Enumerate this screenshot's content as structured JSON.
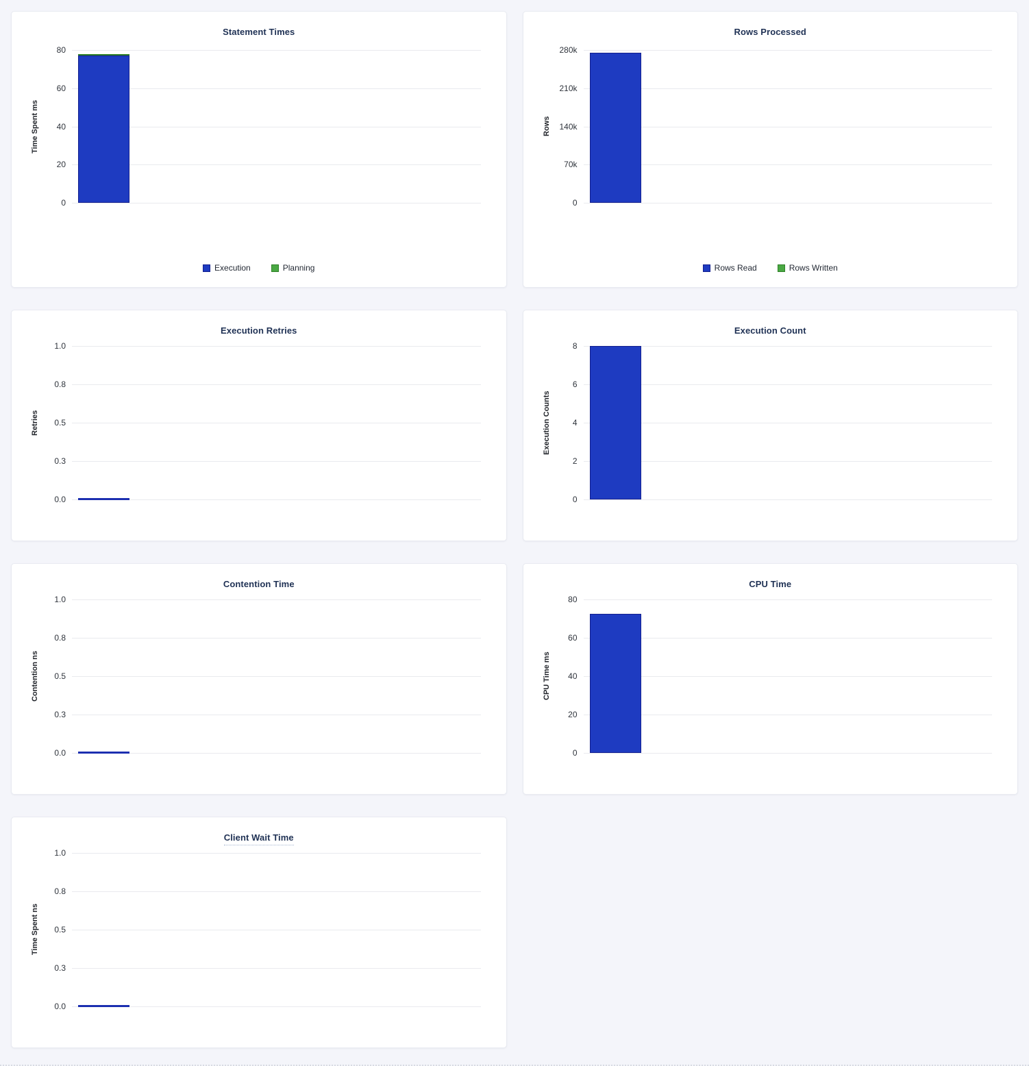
{
  "page": {
    "background": "#f4f5fa"
  },
  "colors": {
    "card_bg": "#ffffff",
    "card_border": "#e8eaf1",
    "title_text": "#1f3154",
    "tick_text": "#2e333b",
    "axis_label_text": "#23262c",
    "legend_text": "#242a35",
    "gridline": "#e9eaee",
    "blue_fill": "#1e3bc1",
    "blue_stroke": "#131f8e",
    "green_fill": "#4aa843",
    "green_stroke": "#2e8127",
    "zero_line": "#1c2fb0"
  },
  "chart_data": [
    {
      "id": "statement-times",
      "type": "bar",
      "title": "Statement Times",
      "title_tooltip": false,
      "ylabel": "Time Spent ms",
      "yticks": [
        "80",
        "60",
        "40",
        "20",
        "0"
      ],
      "ylim": [
        0,
        80
      ],
      "stacked": true,
      "grid": true,
      "legend_position": "bottom",
      "series": [
        {
          "name": "Execution",
          "value": 77,
          "color": "blue"
        },
        {
          "name": "Planning",
          "value": 1,
          "color": "green"
        }
      ],
      "legend": [
        {
          "label": "Execution",
          "color": "blue"
        },
        {
          "label": "Planning",
          "color": "green"
        }
      ],
      "layout": "tall"
    },
    {
      "id": "rows-processed",
      "type": "bar",
      "title": "Rows Processed",
      "title_tooltip": false,
      "ylabel": "Rows",
      "yticks": [
        "280k",
        "210k",
        "140k",
        "70k",
        "0"
      ],
      "ylim": [
        0,
        280000
      ],
      "stacked": true,
      "grid": true,
      "legend_position": "bottom",
      "series": [
        {
          "name": "Rows Read",
          "value": 275000,
          "color": "blue"
        },
        {
          "name": "Rows Written",
          "value": 0,
          "color": "green"
        }
      ],
      "legend": [
        {
          "label": "Rows Read",
          "color": "blue"
        },
        {
          "label": "Rows Written",
          "color": "green"
        }
      ],
      "layout": "tall"
    },
    {
      "id": "execution-retries",
      "type": "bar",
      "title": "Execution Retries",
      "title_tooltip": false,
      "ylabel": "Retries",
      "yticks": [
        "1.0",
        "0.8",
        "0.5",
        "0.3",
        "0.0"
      ],
      "ylim": [
        0,
        1
      ],
      "stacked": false,
      "grid": true,
      "legend_position": "none",
      "series": [
        {
          "name": "Retries",
          "value": 0,
          "color": "blue"
        }
      ],
      "legend": [],
      "layout": "short"
    },
    {
      "id": "execution-count",
      "type": "bar",
      "title": "Execution Count",
      "title_tooltip": false,
      "ylabel": "Execution Counts",
      "yticks": [
        "8",
        "6",
        "4",
        "2",
        "0"
      ],
      "ylim": [
        0,
        8
      ],
      "stacked": false,
      "grid": true,
      "legend_position": "none",
      "series": [
        {
          "name": "Execution Count",
          "value": 8,
          "color": "blue"
        }
      ],
      "legend": [],
      "layout": "short"
    },
    {
      "id": "contention-time",
      "type": "bar",
      "title": "Contention Time",
      "title_tooltip": false,
      "ylabel": "Contention ns",
      "yticks": [
        "1.0",
        "0.8",
        "0.5",
        "0.3",
        "0.0"
      ],
      "ylim": [
        0,
        1
      ],
      "stacked": false,
      "grid": true,
      "legend_position": "none",
      "series": [
        {
          "name": "Contention",
          "value": 0,
          "color": "blue"
        }
      ],
      "legend": [],
      "layout": "short"
    },
    {
      "id": "cpu-time",
      "type": "bar",
      "title": "CPU Time",
      "title_tooltip": false,
      "ylabel": "CPU Time ms",
      "yticks": [
        "80",
        "60",
        "40",
        "20",
        "0"
      ],
      "ylim": [
        0,
        80
      ],
      "stacked": false,
      "grid": true,
      "legend_position": "none",
      "series": [
        {
          "name": "CPU Time",
          "value": 72.5,
          "color": "blue"
        }
      ],
      "legend": [],
      "layout": "short"
    },
    {
      "id": "client-wait-time",
      "type": "bar",
      "title": "Client Wait Time",
      "title_tooltip": true,
      "ylabel": "Time Spent ns",
      "yticks": [
        "1.0",
        "0.8",
        "0.5",
        "0.3",
        "0.0"
      ],
      "ylim": [
        0,
        1
      ],
      "stacked": false,
      "grid": true,
      "legend_position": "none",
      "series": [
        {
          "name": "Client Wait",
          "value": 0,
          "color": "blue"
        }
      ],
      "legend": [],
      "layout": "short"
    }
  ]
}
